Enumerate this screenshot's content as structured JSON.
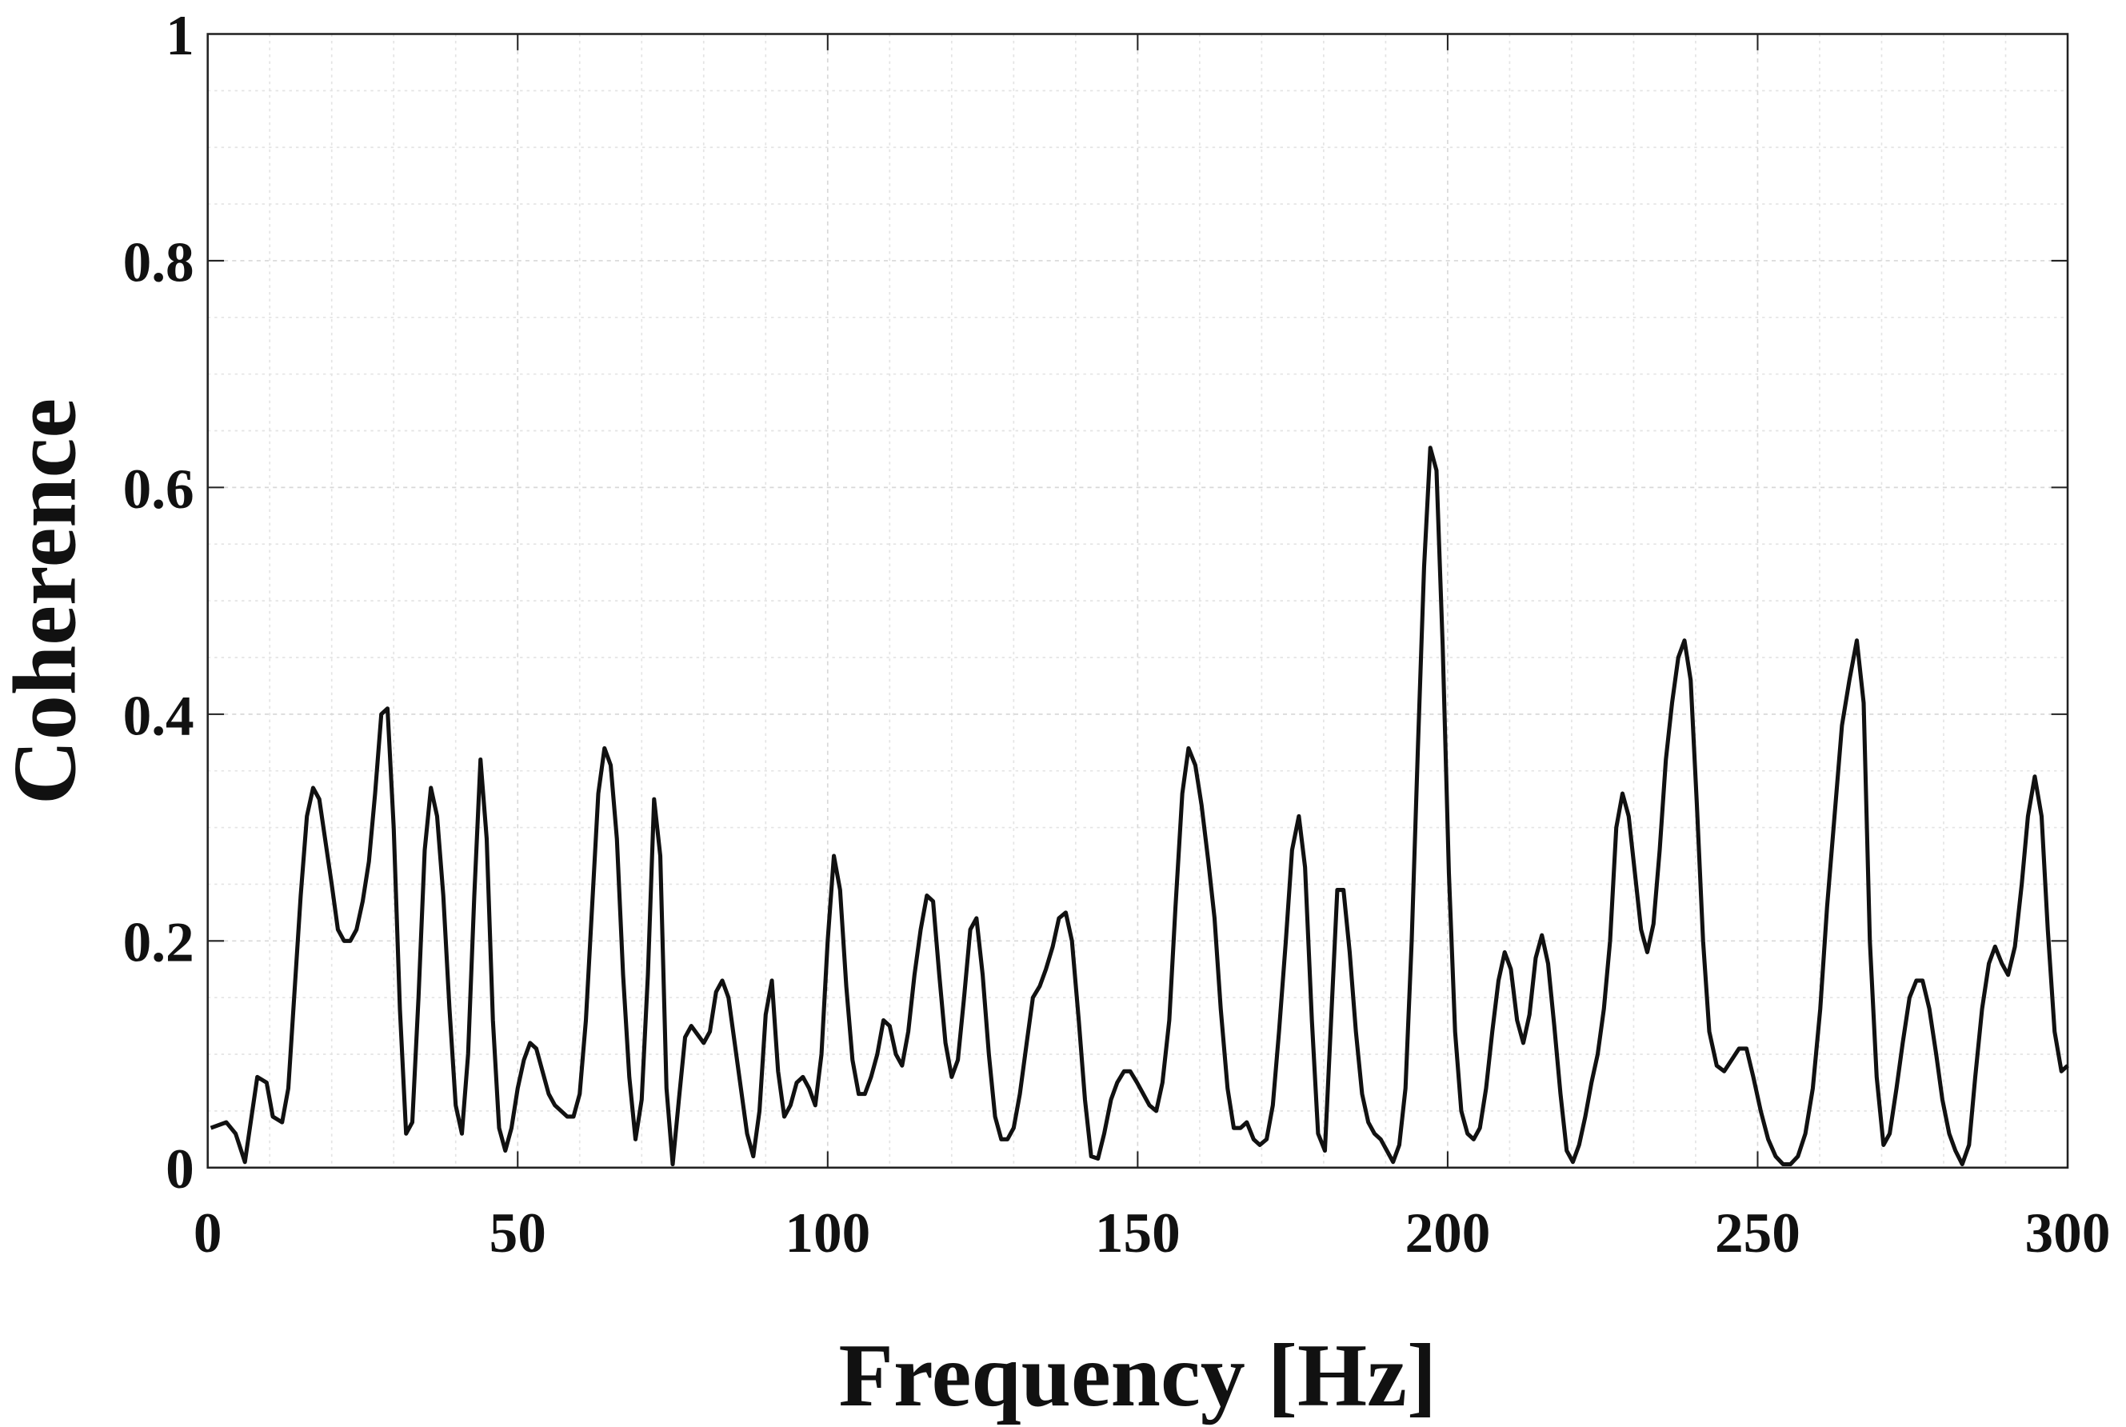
{
  "chart_data": {
    "type": "line",
    "xlabel": "Frequency [Hz]",
    "ylabel": "Coherence",
    "xlim": [
      0,
      300
    ],
    "ylim": [
      0,
      1
    ],
    "xticks": [
      0,
      50,
      100,
      150,
      200,
      250,
      300
    ],
    "yticks": [
      0,
      {
        "value": 0.2,
        "label": "0.2"
      },
      {
        "value": 0.4,
        "label": "0.4"
      },
      {
        "value": 0.6,
        "label": "0.6"
      },
      {
        "value": 0.8,
        "label": "0.8"
      },
      1
    ],
    "grid": true,
    "minor_grid": true,
    "series": [
      {
        "color": "#111111",
        "x": [
          0.5,
          3,
          4.5,
          6,
          8,
          9.5,
          10.5,
          12,
          13,
          15,
          16,
          17,
          18,
          20,
          21,
          22,
          23,
          24,
          25,
          26,
          27,
          28,
          29,
          30,
          31,
          32,
          33,
          34,
          35,
          36,
          37,
          38,
          39,
          40,
          41,
          42,
          43,
          44,
          45,
          46,
          47,
          48,
          49,
          50,
          51,
          52,
          53,
          54,
          55,
          56,
          57,
          58,
          59,
          60,
          61,
          62,
          63,
          64,
          65,
          66,
          67,
          68,
          69,
          70,
          71,
          72,
          73,
          74,
          75,
          76,
          77,
          78,
          80,
          81,
          82,
          83,
          84,
          85,
          86,
          87,
          88,
          89,
          90,
          91,
          92,
          93,
          94,
          95,
          96,
          97,
          98,
          99,
          100,
          101,
          102,
          103,
          104,
          105,
          106,
          107,
          108,
          109,
          110,
          111,
          112,
          113,
          114,
          115,
          116,
          117,
          118,
          119,
          120,
          121,
          122,
          123,
          124,
          125,
          126,
          127,
          128,
          129,
          130,
          131,
          132.1,
          133.1,
          134.2,
          135.2,
          136.3,
          137.3,
          138.4,
          139.4,
          140.5,
          141.5,
          142.5,
          143.6,
          144.6,
          145.7,
          146.7,
          147.8,
          148.8,
          149.9,
          150.9,
          151.9,
          153,
          154,
          155.1,
          156.1,
          157.2,
          158.2,
          159.3,
          160.3,
          161.4,
          162.4,
          163.4,
          164.5,
          165.5,
          166.6,
          167.6,
          168.7,
          169.7,
          170.8,
          171.8,
          172.8,
          173.9,
          174.9,
          176,
          177,
          178.1,
          179.1,
          180.2,
          181.2,
          182.2,
          183.2,
          184.2,
          185.2,
          186.2,
          187.2,
          188.2,
          189.2,
          190.2,
          191.2,
          192.2,
          193.2,
          194.2,
          195.2,
          196.2,
          197.2,
          198.2,
          199.2,
          200.2,
          201.2,
          202.2,
          203.2,
          204.2,
          205.2,
          206.2,
          207.2,
          208.2,
          209.2,
          210.2,
          211.2,
          212.2,
          213.2,
          214.2,
          215.2,
          216.2,
          217.2,
          218.2,
          219.2,
          220.2,
          221.2,
          222.2,
          223.2,
          224.2,
          225.2,
          226.2,
          227.2,
          228.2,
          229.2,
          230.2,
          231.2,
          232.2,
          233.2,
          234.2,
          235.2,
          236.2,
          237.2,
          238.2,
          239.2,
          240.2,
          241.2,
          242.2,
          243.4,
          244.6,
          245.8,
          247,
          248.2,
          249.3,
          250.5,
          251.7,
          252.9,
          254.1,
          255.3,
          256.5,
          257.7,
          258.9,
          260.1,
          261.2,
          262.4,
          263.6,
          264.8,
          266,
          267.1,
          268.1,
          269.2,
          270.3,
          271.3,
          272.4,
          273.4,
          274.5,
          275.6,
          276.6,
          277.7,
          278.8,
          279.8,
          280.9,
          281.9,
          283,
          284.1,
          285.1,
          286.2,
          287.3,
          288.3,
          289.4,
          290.4,
          291.5,
          292.6,
          293.6,
          294.7,
          295.8,
          296.8,
          297.9,
          299,
          300
        ],
        "values": [
          0.035,
          0.04,
          0.03,
          0.005,
          0.08,
          0.075,
          0.045,
          0.04,
          0.07,
          0.24,
          0.31,
          0.335,
          0.325,
          0.25,
          0.21,
          0.2,
          0.2,
          0.21,
          0.235,
          0.27,
          0.33,
          0.4,
          0.405,
          0.3,
          0.14,
          0.03,
          0.04,
          0.15,
          0.28,
          0.335,
          0.31,
          0.24,
          0.14,
          0.055,
          0.03,
          0.1,
          0.24,
          0.36,
          0.29,
          0.13,
          0.035,
          0.015,
          0.035,
          0.07,
          0.095,
          0.11,
          0.105,
          0.085,
          0.065,
          0.055,
          0.05,
          0.045,
          0.045,
          0.065,
          0.13,
          0.23,
          0.33,
          0.37,
          0.355,
          0.29,
          0.17,
          0.08,
          0.025,
          0.06,
          0.17,
          0.325,
          0.275,
          0.07,
          0.003,
          0.06,
          0.115,
          0.125,
          0.11,
          0.12,
          0.155,
          0.165,
          0.15,
          0.11,
          0.07,
          0.03,
          0.01,
          0.05,
          0.135,
          0.165,
          0.085,
          0.045,
          0.055,
          0.075,
          0.08,
          0.07,
          0.055,
          0.1,
          0.2,
          0.275,
          0.245,
          0.16,
          0.095,
          0.065,
          0.065,
          0.08,
          0.1,
          0.13,
          0.125,
          0.1,
          0.09,
          0.12,
          0.17,
          0.21,
          0.24,
          0.235,
          0.17,
          0.11,
          0.08,
          0.095,
          0.15,
          0.21,
          0.22,
          0.17,
          0.1,
          0.045,
          0.025,
          0.025,
          0.035,
          0.065,
          0.11,
          0.15,
          0.16,
          0.175,
          0.195,
          0.22,
          0.225,
          0.2,
          0.13,
          0.06,
          0.01,
          0.008,
          0.03,
          0.06,
          0.075,
          0.085,
          0.085,
          0.075,
          0.065,
          0.055,
          0.05,
          0.075,
          0.13,
          0.23,
          0.33,
          0.37,
          0.355,
          0.32,
          0.27,
          0.22,
          0.14,
          0.07,
          0.035,
          0.035,
          0.04,
          0.025,
          0.02,
          0.025,
          0.055,
          0.12,
          0.2,
          0.28,
          0.31,
          0.265,
          0.13,
          0.03,
          0.015,
          0.13,
          0.245,
          0.245,
          0.19,
          0.12,
          0.065,
          0.04,
          0.03,
          0.025,
          0.015,
          0.005,
          0.02,
          0.07,
          0.2,
          0.37,
          0.53,
          0.635,
          0.615,
          0.46,
          0.26,
          0.12,
          0.05,
          0.03,
          0.025,
          0.035,
          0.07,
          0.12,
          0.165,
          0.19,
          0.175,
          0.13,
          0.11,
          0.135,
          0.185,
          0.205,
          0.18,
          0.125,
          0.065,
          0.015,
          0.005,
          0.02,
          0.045,
          0.075,
          0.1,
          0.14,
          0.2,
          0.3,
          0.33,
          0.31,
          0.26,
          0.21,
          0.19,
          0.215,
          0.28,
          0.36,
          0.41,
          0.45,
          0.465,
          0.43,
          0.32,
          0.2,
          0.12,
          0.09,
          0.085,
          0.095,
          0.105,
          0.105,
          0.08,
          0.05,
          0.025,
          0.01,
          0.003,
          0.003,
          0.01,
          0.03,
          0.07,
          0.14,
          0.23,
          0.31,
          0.39,
          0.43,
          0.465,
          0.41,
          0.2,
          0.08,
          0.02,
          0.03,
          0.07,
          0.11,
          0.15,
          0.165,
          0.165,
          0.14,
          0.1,
          0.06,
          0.03,
          0.015,
          0.003,
          0.02,
          0.08,
          0.14,
          0.18,
          0.195,
          0.18,
          0.17,
          0.195,
          0.25,
          0.31,
          0.345,
          0.31,
          0.21,
          0.12,
          0.085,
          0.09
        ]
      }
    ]
  }
}
